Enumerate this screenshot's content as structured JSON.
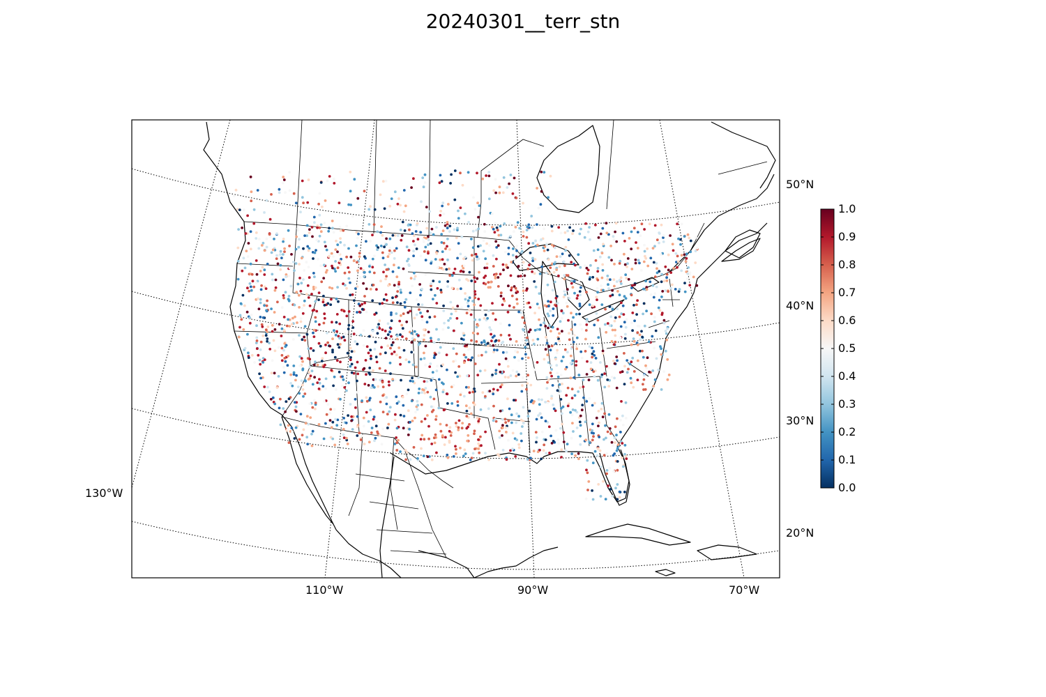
{
  "title": "20240301__terr_stn",
  "map": {
    "projection": "lambert-conformal",
    "region": "contiguous-united-states",
    "point_style": "small-filled-circles",
    "graticule_style": "dotted"
  },
  "axes": {
    "lon_labels": [
      "110°W",
      "90°W",
      "70°W",
      "130°W"
    ],
    "lat_labels": [
      "50°N",
      "40°N",
      "30°N",
      "20°N"
    ]
  },
  "colorbar": {
    "colormap": "RdBu_r",
    "range": [
      0.0,
      1.0
    ],
    "ticks": [
      "1.0",
      "0.9",
      "0.8",
      "0.7",
      "0.6",
      "0.5",
      "0.4",
      "0.3",
      "0.2",
      "0.1",
      "0.0"
    ],
    "colors": [
      "#67001f",
      "#b2182b",
      "#d6604d",
      "#f4a582",
      "#fddbc7",
      "#f7f7f7",
      "#d1e5f0",
      "#92c5de",
      "#4393c3",
      "#2166ac",
      "#053061"
    ]
  }
}
